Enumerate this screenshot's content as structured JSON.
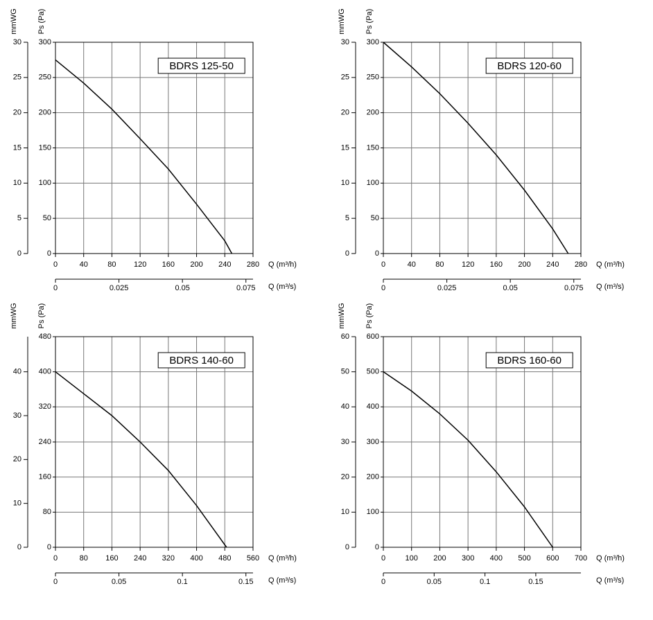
{
  "chart_data": [
    {
      "type": "line",
      "title": "BDRS 125-50",
      "xlabel": "Q (m³/h)",
      "x2label": "Q (m³/s)",
      "ylabel": "Ps (Pa)",
      "y2label": "mmWG",
      "x": [
        0,
        40,
        80,
        120,
        160,
        200,
        240,
        250
      ],
      "series": [
        {
          "color": "#000000",
          "values": [
            275,
            242,
            205,
            163,
            120,
            70,
            18,
            0
          ]
        }
      ],
      "xlim": [
        0,
        280
      ],
      "xticks": [
        0,
        40,
        80,
        120,
        160,
        200,
        240,
        280
      ],
      "x2lim": [
        0,
        0.0778
      ],
      "x2ticks": [
        0,
        0.025,
        0.05,
        0.075
      ],
      "ylim": [
        0,
        300
      ],
      "yticks": [
        0,
        50,
        100,
        150,
        200,
        250,
        300
      ],
      "y2lim": [
        0,
        30
      ],
      "y2ticks": [
        0,
        5,
        10,
        15,
        20,
        25,
        30
      ],
      "grid": true
    },
    {
      "type": "line",
      "title": "BDRS 120-60",
      "xlabel": "Q (m³/h)",
      "x2label": "Q (m³/s)",
      "ylabel": "Ps (Pa)",
      "y2label": "mmWG",
      "x": [
        0,
        40,
        80,
        120,
        160,
        200,
        240,
        262
      ],
      "series": [
        {
          "color": "#000000",
          "values": [
            300,
            265,
            227,
            185,
            140,
            90,
            35,
            0
          ]
        }
      ],
      "xlim": [
        0,
        280
      ],
      "xticks": [
        0,
        40,
        80,
        120,
        160,
        200,
        240,
        280
      ],
      "x2lim": [
        0,
        0.0778
      ],
      "x2ticks": [
        0,
        0.025,
        0.05,
        0.075
      ],
      "ylim": [
        0,
        300
      ],
      "yticks": [
        0,
        50,
        100,
        150,
        200,
        250,
        300
      ],
      "y2lim": [
        0,
        30
      ],
      "y2ticks": [
        0,
        5,
        10,
        15,
        20,
        25,
        30
      ],
      "grid": true
    },
    {
      "type": "line",
      "title": "BDRS 140-60",
      "xlabel": "Q (m³/h)",
      "x2label": "Q (m³/s)",
      "ylabel": "Ps (Pa)",
      "y2label": "mmWG",
      "x": [
        0,
        80,
        160,
        240,
        320,
        400,
        485
      ],
      "series": [
        {
          "color": "#000000",
          "values": [
            400,
            350,
            300,
            240,
            175,
            95,
            0
          ]
        }
      ],
      "xlim": [
        0,
        560
      ],
      "xticks": [
        0,
        80,
        160,
        240,
        320,
        400,
        480,
        560
      ],
      "x2lim": [
        0,
        0.1556
      ],
      "x2ticks": [
        0,
        0.05,
        0.1,
        0.15
      ],
      "ylim": [
        0,
        480
      ],
      "yticks": [
        0,
        80,
        160,
        240,
        320,
        400,
        480
      ],
      "y2lim": [
        0,
        48
      ],
      "y2ticks": [
        0,
        10,
        20,
        30,
        40
      ],
      "grid": true
    },
    {
      "type": "line",
      "title": "BDRS 160-60",
      "xlabel": "Q (m³/h)",
      "x2label": "Q (m³/s)",
      "ylabel": "Ps (Pa)",
      "y2label": "mmWG",
      "x": [
        0,
        100,
        200,
        300,
        400,
        500,
        600
      ],
      "series": [
        {
          "color": "#000000",
          "values": [
            500,
            445,
            380,
            305,
            215,
            115,
            0
          ]
        }
      ],
      "xlim": [
        0,
        700
      ],
      "xticks": [
        0,
        100,
        200,
        300,
        400,
        500,
        600,
        700
      ],
      "x2lim": [
        0,
        0.1944
      ],
      "x2ticks": [
        0,
        0.05,
        0.1,
        0.15
      ],
      "ylim": [
        0,
        600
      ],
      "yticks": [
        0,
        100,
        200,
        300,
        400,
        500,
        600
      ],
      "y2lim": [
        0,
        60
      ],
      "y2ticks": [
        0,
        10,
        20,
        30,
        40,
        50,
        60
      ],
      "grid": true
    }
  ]
}
